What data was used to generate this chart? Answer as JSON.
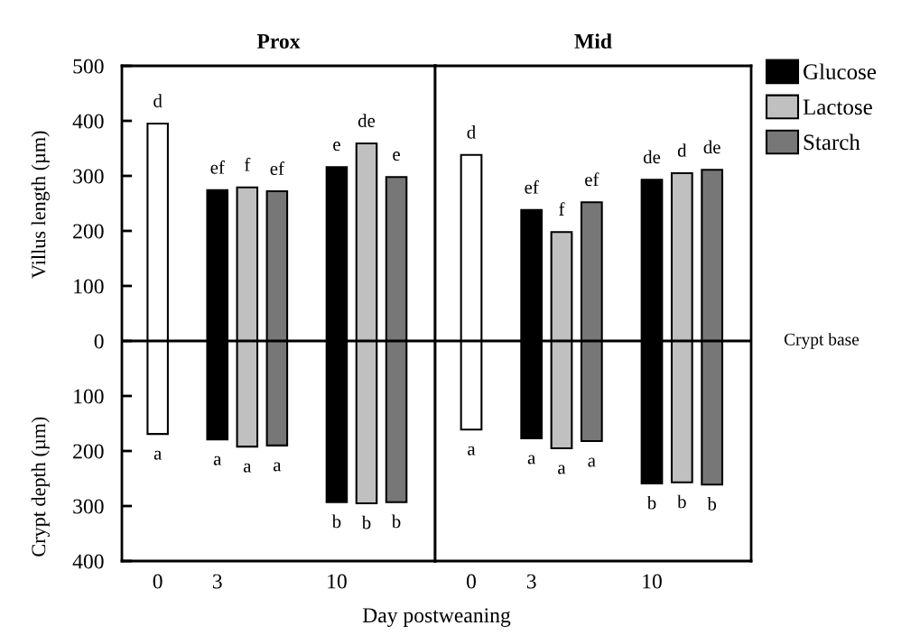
{
  "chart_data": [
    {
      "type": "bar",
      "title": "Prox",
      "xlabel": "Day postweaning",
      "ylabel": "Villus length (µm)",
      "annotations": [
        "Crypt depth (µm)"
      ],
      "stacked": true,
      "legend": false,
      "categories": [
        "0",
        null,
        "3",
        null,
        null,
        null,
        "10",
        null,
        null
      ],
      "ylim": [
        -400,
        500
      ],
      "yticks": [
        {
          "value": -400,
          "label": "400"
        },
        {
          "value": -300,
          "label": "300"
        },
        {
          "value": -200,
          "label": "200"
        },
        {
          "value": -100,
          "label": "100"
        },
        0,
        100,
        200,
        300,
        400,
        500
      ],
      "ref_lines": [
        {
          "axis": "y",
          "value": 0,
          "color": "#000000"
        }
      ],
      "series": [
        {
          "color": "#ffffff",
          "values": [
            395,
            null,
            null,
            null,
            null,
            null,
            null,
            null,
            null
          ],
          "value_labels": [
            "d",
            null,
            null,
            null,
            null,
            null,
            null,
            null,
            null
          ]
        },
        {
          "color": "#ffffff",
          "values": [
            -169,
            null,
            null,
            null,
            null,
            null,
            null,
            null,
            null
          ],
          "value_labels": [
            "a",
            null,
            null,
            null,
            null,
            null,
            null,
            null,
            null
          ]
        },
        {
          "color": "#000000",
          "values": [
            null,
            null,
            274,
            null,
            null,
            null,
            316,
            null,
            null
          ],
          "value_labels": [
            null,
            null,
            "ef",
            null,
            null,
            null,
            "e",
            null,
            null
          ]
        },
        {
          "color": "#000000",
          "values": [
            null,
            null,
            -179,
            null,
            null,
            null,
            -293,
            null,
            null
          ],
          "value_labels": [
            null,
            null,
            "a",
            null,
            null,
            null,
            "b",
            null,
            null
          ]
        },
        {
          "color": "#c0c0c0",
          "values": [
            null,
            null,
            null,
            279,
            null,
            null,
            null,
            359,
            null
          ],
          "value_labels": [
            null,
            null,
            null,
            "f",
            null,
            null,
            null,
            "de",
            null
          ]
        },
        {
          "color": "#c0c0c0",
          "values": [
            null,
            null,
            null,
            -192,
            null,
            null,
            null,
            -295,
            null
          ],
          "value_labels": [
            null,
            null,
            null,
            "a",
            null,
            null,
            null,
            "b",
            null
          ]
        },
        {
          "color": "#777777",
          "values": [
            null,
            null,
            null,
            null,
            272,
            null,
            null,
            null,
            298
          ],
          "value_labels": [
            null,
            null,
            null,
            null,
            "ef",
            null,
            null,
            null,
            "e"
          ]
        },
        {
          "color": "#777777",
          "values": [
            null,
            null,
            null,
            null,
            -190,
            null,
            null,
            null,
            -293
          ],
          "value_labels": [
            null,
            null,
            null,
            null,
            "a",
            null,
            null,
            null,
            "b"
          ]
        }
      ]
    },
    {
      "type": "bar",
      "title": "Mid",
      "stacked": true,
      "legend": "top right",
      "tick_labels": "x",
      "categories": [
        "0",
        null,
        "3",
        null,
        null,
        null,
        "10",
        null,
        null
      ],
      "ylim": [
        -400,
        500
      ],
      "ref_lines": [
        {
          "axis": "y",
          "value": 0,
          "label": "Crypt base",
          "color": "#000000"
        }
      ],
      "series": [
        {
          "color": "#ffffff",
          "values": [
            338,
            null,
            null,
            null,
            null,
            null,
            null,
            null,
            null
          ],
          "value_labels": [
            "d",
            null,
            null,
            null,
            null,
            null,
            null,
            null,
            null
          ]
        },
        {
          "color": "#ffffff",
          "values": [
            -161,
            null,
            null,
            null,
            null,
            null,
            null,
            null,
            null
          ],
          "value_labels": [
            "a",
            null,
            null,
            null,
            null,
            null,
            null,
            null,
            null
          ]
        },
        {
          "name": "Glucose",
          "color": "#000000",
          "values": [
            null,
            null,
            238,
            null,
            null,
            null,
            293,
            null,
            null
          ],
          "value_labels": [
            null,
            null,
            "ef",
            null,
            null,
            null,
            "de",
            null,
            null
          ]
        },
        {
          "color": "#000000",
          "values": [
            null,
            null,
            -177,
            null,
            null,
            null,
            -259,
            null,
            null
          ],
          "value_labels": [
            null,
            null,
            "a",
            null,
            null,
            null,
            "b",
            null,
            null
          ]
        },
        {
          "name": "Lactose",
          "color": "#c0c0c0",
          "values": [
            null,
            null,
            null,
            198,
            null,
            null,
            null,
            305,
            null
          ],
          "value_labels": [
            null,
            null,
            null,
            "f",
            null,
            null,
            null,
            "d",
            null
          ]
        },
        {
          "color": "#c0c0c0",
          "values": [
            null,
            null,
            null,
            -195,
            null,
            null,
            null,
            -257,
            null
          ],
          "value_labels": [
            null,
            null,
            null,
            "a",
            null,
            null,
            null,
            "b",
            null
          ]
        },
        {
          "name": "Starch",
          "color": "#777777",
          "values": [
            null,
            null,
            null,
            null,
            252,
            null,
            null,
            null,
            311
          ],
          "value_labels": [
            null,
            null,
            null,
            null,
            "ef",
            null,
            null,
            null,
            "de"
          ]
        },
        {
          "color": "#777777",
          "values": [
            null,
            null,
            null,
            null,
            -182,
            null,
            null,
            null,
            -261
          ],
          "value_labels": [
            null,
            null,
            null,
            null,
            "a",
            null,
            null,
            null,
            "b"
          ]
        }
      ]
    }
  ]
}
